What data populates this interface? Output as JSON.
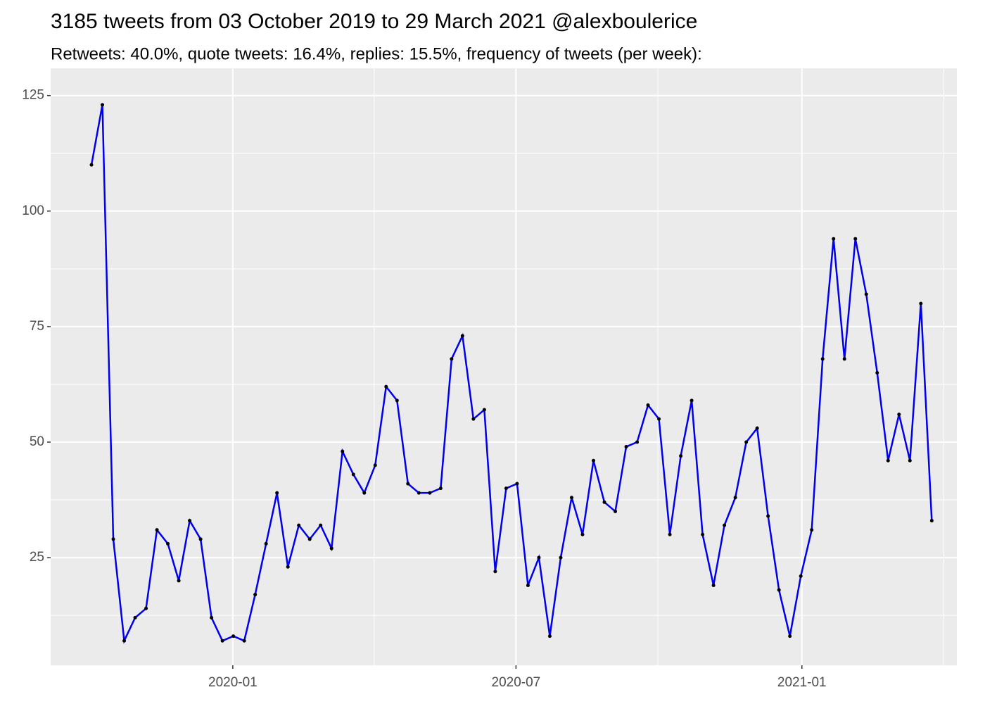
{
  "chart_data": {
    "type": "line",
    "title": "3185 tweets from 03 October 2019 to 29 March 2021 @alexboulerice",
    "subtitle": "Retweets: 40.0%, quote tweets: 16.4%, replies: 15.5%, frequency of tweets (per week):",
    "x": [
      0,
      1,
      2,
      3,
      4,
      5,
      6,
      7,
      8,
      9,
      10,
      11,
      12,
      13,
      14,
      15,
      16,
      17,
      18,
      19,
      20,
      21,
      22,
      23,
      24,
      25,
      26,
      27,
      28,
      29,
      30,
      31,
      32,
      33,
      34,
      35,
      36,
      37,
      38,
      39,
      40,
      41,
      42,
      43,
      44,
      45,
      46,
      47,
      48,
      49,
      50,
      51,
      52,
      53,
      54,
      55,
      56,
      57,
      58,
      59,
      60,
      61,
      62,
      63,
      64,
      65,
      66,
      67,
      68,
      69,
      70,
      71,
      72,
      73,
      74,
      75,
      76,
      77
    ],
    "values": [
      110,
      123,
      29,
      7,
      12,
      14,
      31,
      28,
      20,
      33,
      29,
      12,
      7,
      8,
      7,
      17,
      28,
      39,
      23,
      32,
      29,
      32,
      27,
      48,
      43,
      39,
      45,
      62,
      59,
      41,
      39,
      39,
      40,
      68,
      73,
      55,
      57,
      22,
      40,
      41,
      19,
      25,
      8,
      25,
      38,
      30,
      46,
      37,
      35,
      49,
      50,
      58,
      55,
      30,
      47,
      59,
      30,
      19,
      32,
      38,
      50,
      53,
      34,
      18,
      8,
      21,
      31,
      68,
      94,
      68,
      94,
      82,
      65,
      46,
      56,
      46,
      80,
      33
    ],
    "color": "#0000ee",
    "point_color": "#000000",
    "xlim": [
      -3.74,
      79.3
    ],
    "xticks": [
      {
        "value": 12.95,
        "label": "2020-01"
      },
      {
        "value": 38.9,
        "label": "2020-07"
      },
      {
        "value": 65.1,
        "label": "2021-01"
      }
    ],
    "xminorticks": [
      25.9,
      51.9,
      78.1
    ],
    "ylim": [
      1.7,
      130.9
    ],
    "yticks": [
      25,
      50,
      75,
      100,
      125
    ],
    "yminorticks": [
      12.5,
      37.5,
      62.5,
      87.5,
      112.5
    ],
    "grid": true
  }
}
